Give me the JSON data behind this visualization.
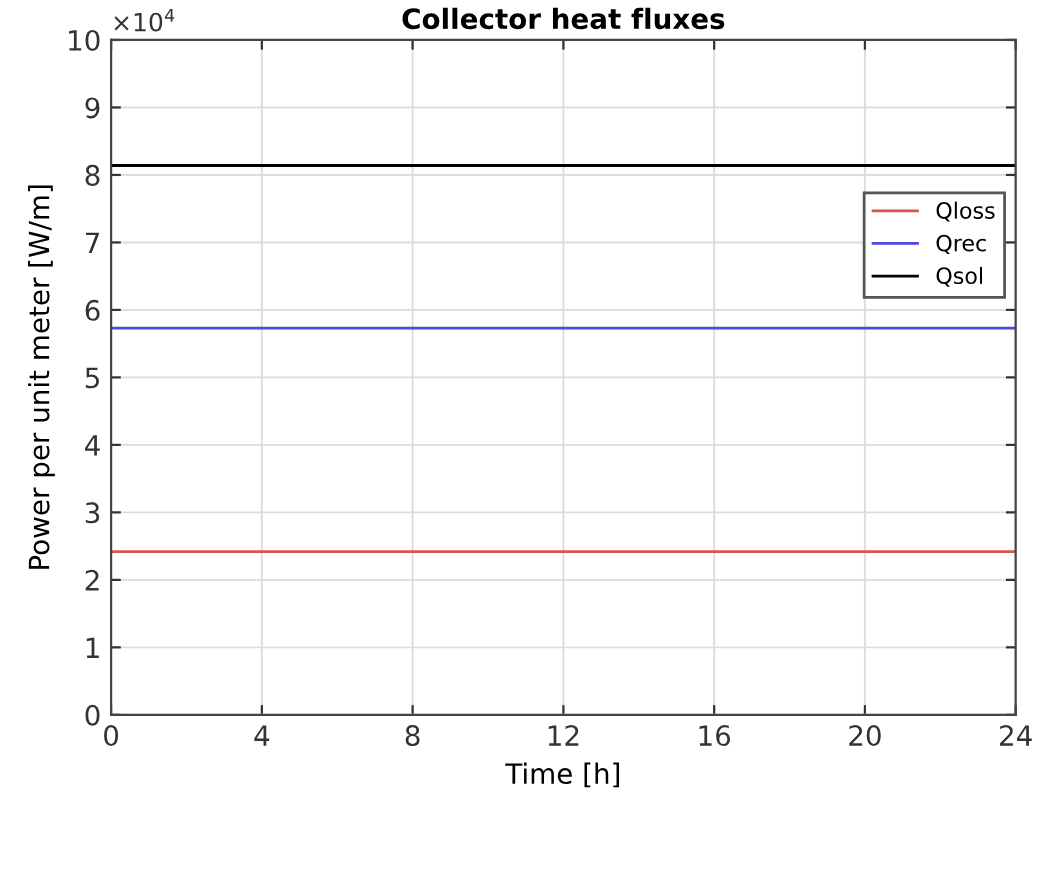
{
  "chart_data": {
    "type": "line",
    "title": "Collector heat fluxes",
    "xlabel": "Time [h]",
    "ylabel": "Power per unit meter [W/m]",
    "annotations": [
      "×10$^{4}$"
    ],
    "x": [
      0,
      24
    ],
    "series": [
      {
        "name": "Qloss",
        "color": "#d9534f",
        "values": [
          2.42,
          2.42
        ]
      },
      {
        "name": "Qrec",
        "color": "#4a4adb",
        "values": [
          5.73,
          5.73
        ]
      },
      {
        "name": "Qsol",
        "color": "#000000",
        "values": [
          8.14,
          8.14
        ]
      }
    ],
    "xlim": [
      0,
      24
    ],
    "xticks": [
      0,
      4,
      8,
      12,
      16,
      20,
      24
    ],
    "ylim": [
      0,
      10
    ],
    "yticks": [
      0,
      1,
      2,
      3,
      4,
      5,
      6,
      7,
      8,
      9,
      10
    ],
    "grid": true,
    "legend": "top right",
    "marker": "none",
    "line_style": "solid"
  }
}
